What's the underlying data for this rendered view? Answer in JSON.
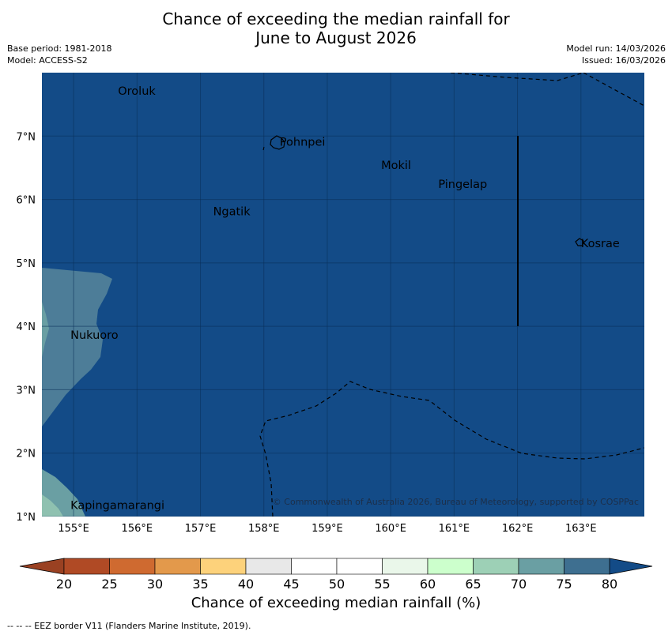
{
  "title": {
    "line1": "Chance of exceeding the median rainfall for",
    "line2": "June to August 2026"
  },
  "meta_left": {
    "base_period": "Base period: 1981-2018",
    "model": "Model: ACCESS-S2"
  },
  "meta_right": {
    "model_run": "Model run: 14/03/2026",
    "issued": "Issued: 16/03/2026"
  },
  "map": {
    "lon_range": [
      154.5,
      164
    ],
    "lat_range": [
      1,
      8
    ],
    "lon_ticks": [
      "155°E",
      "156°E",
      "157°E",
      "158°E",
      "159°E",
      "160°E",
      "161°E",
      "162°E",
      "163°E"
    ],
    "lat_ticks": [
      "1°N",
      "2°N",
      "3°N",
      "4°N",
      "5°N",
      "6°N",
      "7°N"
    ],
    "places": [
      {
        "name": "Oroluk",
        "lon": 155.7,
        "lat": 7.65
      },
      {
        "name": "Pohnpei",
        "lon": 158.25,
        "lat": 6.85
      },
      {
        "name": "Mokil",
        "lon": 159.85,
        "lat": 6.48
      },
      {
        "name": "Pingelap",
        "lon": 160.75,
        "lat": 6.18
      },
      {
        "name": "Ngatik",
        "lon": 157.2,
        "lat": 5.75
      },
      {
        "name": "Kosrae",
        "lon": 163.0,
        "lat": 5.25
      },
      {
        "name": "Nukuoro",
        "lon": 154.95,
        "lat": 3.8
      },
      {
        "name": "Kapingamarangi",
        "lon": 154.95,
        "lat": 1.12
      }
    ],
    "credit": "© Commonwealth of Australia 2026, Bureau of Meteorology, supported by COSPPac"
  },
  "colorbar": {
    "ticks": [
      "20",
      "25",
      "30",
      "35",
      "40",
      "45",
      "50",
      "55",
      "60",
      "65",
      "70",
      "75",
      "80"
    ],
    "colors": [
      "#b04a25",
      "#cf6a30",
      "#e3994b",
      "#fdd27b",
      "#e8e8e8",
      "#ffffff",
      "#ffffff",
      "#eaf7ea",
      "#ccffcc",
      "#9dd0b6",
      "#6a9fa3",
      "#3e6f90"
    ],
    "under_color": "#9a4122",
    "over_color": "#134b87",
    "label": "Chance of exceeding median rainfall (%)"
  },
  "colors": {
    "dominant": "#134b87",
    "band_75_80": "#4d7d98",
    "band_70_75": "#6a9fa3",
    "band_65_70": "#8fc1b0"
  },
  "footnote": "--  --  -- EEZ border V11 (Flanders Marine Institute, 2019)."
}
